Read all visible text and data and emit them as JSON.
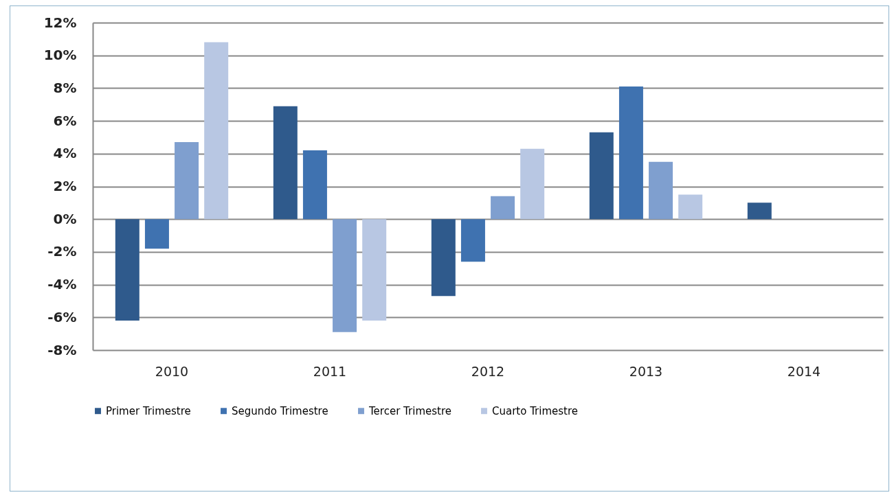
{
  "chart_data": {
    "type": "bar",
    "categories": [
      "2010",
      "2011",
      "2012",
      "2013",
      "2014"
    ],
    "series": [
      {
        "name": "Primer Trimestre",
        "color": "#2f5a8c",
        "values": [
          -6.2,
          6.9,
          -4.7,
          5.3,
          1.0
        ]
      },
      {
        "name": "Segundo Trimestre",
        "color": "#3f72b0",
        "values": [
          -1.8,
          4.2,
          -2.6,
          8.1,
          null
        ]
      },
      {
        "name": "Tercer Trimestre",
        "color": "#7f9fcf",
        "values": [
          4.7,
          -6.9,
          1.4,
          3.5,
          null
        ]
      },
      {
        "name": "Cuarto Trimestre",
        "color": "#b8c7e3",
        "values": [
          10.8,
          -6.2,
          4.3,
          1.5,
          null
        ]
      }
    ],
    "ylim": [
      -8,
      12
    ],
    "yticks": [
      {
        "value": -8,
        "label": "-8%"
      },
      {
        "value": -6,
        "label": "-6%"
      },
      {
        "value": -4,
        "label": "-4%"
      },
      {
        "value": -2,
        "label": "-2%"
      },
      {
        "value": 0,
        "label": "0%"
      },
      {
        "value": 2,
        "label": "2%"
      },
      {
        "value": 4,
        "label": "4%"
      },
      {
        "value": 6,
        "label": "6%"
      },
      {
        "value": 8,
        "label": "8%"
      },
      {
        "value": 10,
        "label": "10%"
      },
      {
        "value": 12,
        "label": "12%"
      }
    ],
    "grid": "y",
    "legend": "bottom left"
  }
}
